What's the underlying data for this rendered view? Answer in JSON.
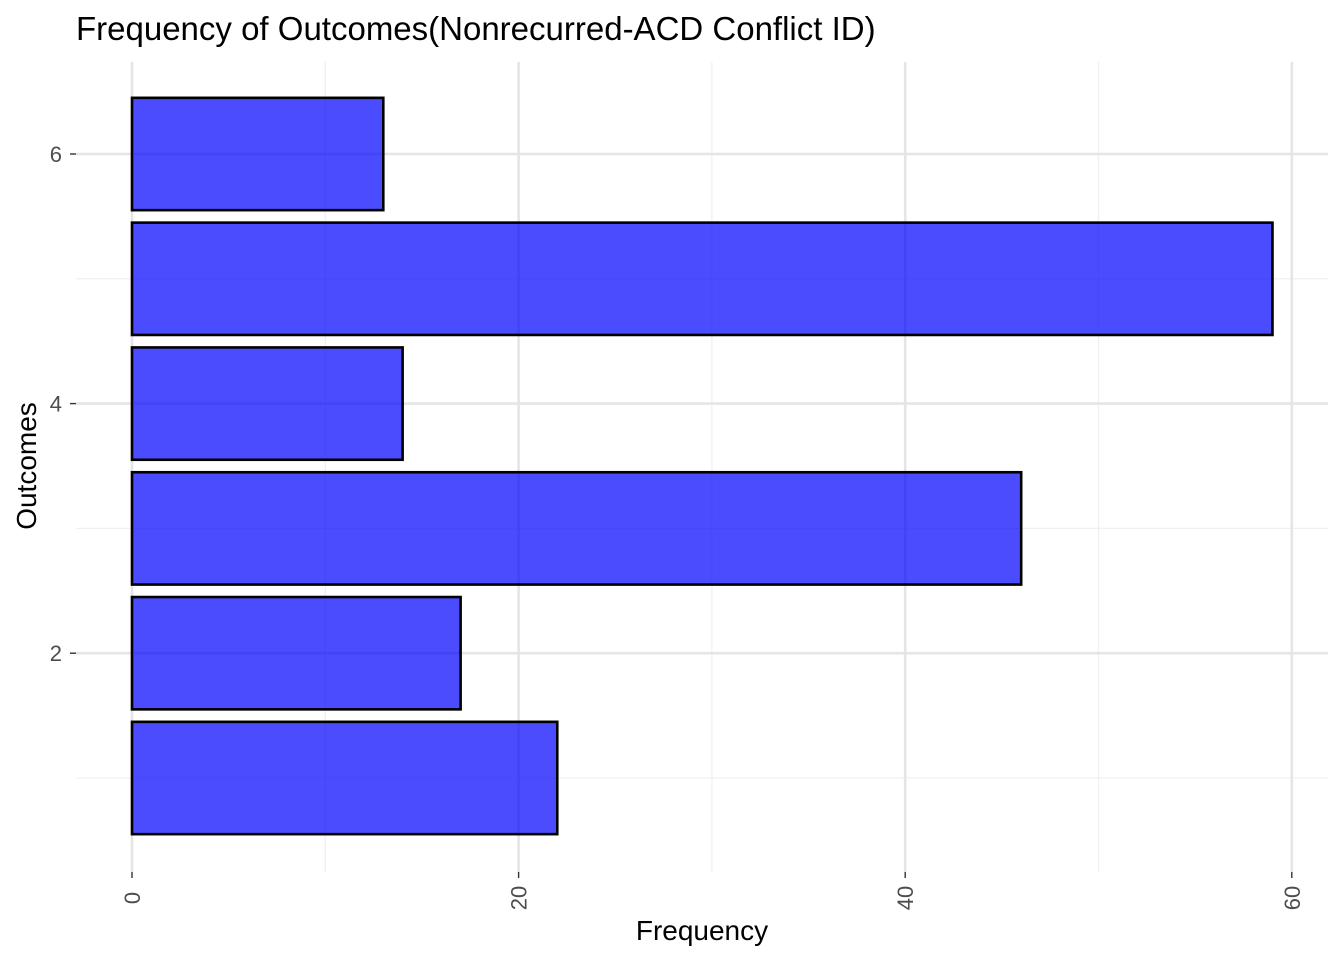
{
  "chart_data": {
    "type": "bar",
    "orientation": "horizontal",
    "title": "Frequency of Outcomes(Nonrecurred-ACD Conflict ID)",
    "xlabel": "Frequency",
    "ylabel": "Outcomes",
    "categories": [
      1,
      2,
      3,
      4,
      5,
      6
    ],
    "values": [
      22,
      17,
      46,
      14,
      59,
      13
    ],
    "xlim": [
      0,
      61
    ],
    "ylim": [
      0.5,
      6.5
    ],
    "x_ticks": [
      0,
      20,
      40,
      60
    ],
    "x_minor_ticks": [
      10,
      30,
      50
    ],
    "y_ticks": [
      2,
      4,
      6
    ],
    "y_minor_ticks": [
      1,
      3,
      5
    ],
    "grid": true,
    "legend": "none",
    "bar_color": "#0000ff",
    "bar_border_color": "#000000",
    "background_color": "#ffffff"
  }
}
